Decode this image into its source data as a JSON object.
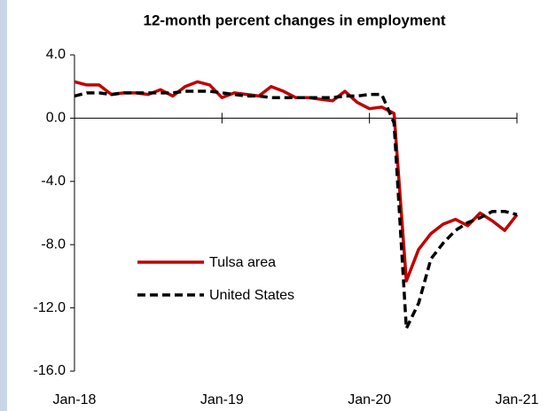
{
  "chart_data": {
    "type": "line",
    "title": "12-month percent changes in employment",
    "categories": [
      "Jan-18",
      null,
      null,
      null,
      null,
      null,
      null,
      null,
      null,
      null,
      null,
      null,
      "Jan-19",
      null,
      null,
      null,
      null,
      null,
      null,
      null,
      null,
      null,
      null,
      null,
      "Jan-20",
      null,
      null,
      null,
      null,
      null,
      null,
      null,
      null,
      null,
      null,
      null,
      "Jan-21"
    ],
    "series": [
      {
        "name": "Tulsa area",
        "color": "#c00000",
        "dash": false,
        "values": [
          2.3,
          2.1,
          2.1,
          1.5,
          1.6,
          1.6,
          1.5,
          1.8,
          1.4,
          2.0,
          2.3,
          2.1,
          1.3,
          1.6,
          1.5,
          1.4,
          2.0,
          1.7,
          1.3,
          1.3,
          1.2,
          1.1,
          1.7,
          1.0,
          0.6,
          0.7,
          0.3,
          -10.3,
          -8.3,
          -7.3,
          -6.7,
          -6.4,
          -6.8,
          -6.0,
          -6.5,
          -7.1,
          -6.1
        ]
      },
      {
        "name": "United States",
        "color": "#000000",
        "dash": true,
        "values": [
          1.4,
          1.6,
          1.6,
          1.5,
          1.6,
          1.6,
          1.6,
          1.6,
          1.6,
          1.7,
          1.7,
          1.7,
          1.6,
          1.5,
          1.4,
          1.4,
          1.3,
          1.3,
          1.3,
          1.3,
          1.3,
          1.3,
          1.4,
          1.4,
          1.5,
          1.5,
          -0.3,
          -13.3,
          -11.7,
          -8.9,
          -7.9,
          -7.1,
          -6.6,
          -6.3,
          -5.9,
          -5.9,
          -6.1
        ]
      }
    ],
    "ylim": [
      -16,
      4
    ],
    "yticks": [
      {
        "value": 4,
        "label": "4.0"
      },
      {
        "value": 0,
        "label": "0.0"
      },
      {
        "value": -4,
        "label": "-4.0"
      },
      {
        "value": -8,
        "label": "-8.0"
      },
      {
        "value": -12,
        "label": "-12.0"
      },
      {
        "value": -16,
        "label": "-16.0"
      }
    ],
    "grid": false
  }
}
